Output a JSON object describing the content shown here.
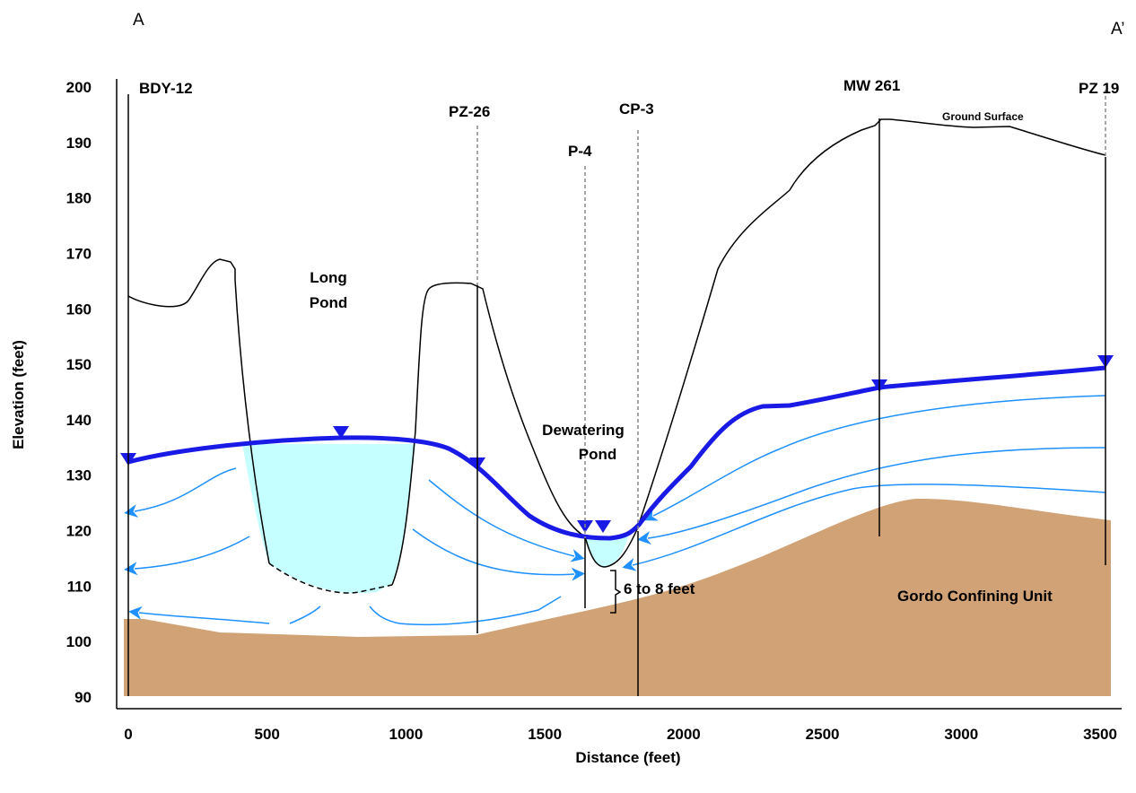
{
  "section": {
    "start": "A",
    "end": "A’"
  },
  "axes": {
    "x_label": "Distance (feet)",
    "y_label": "Elevation (feet)",
    "xlim": [
      0,
      3500
    ],
    "ylim": [
      90,
      200
    ],
    "xticks": [
      0,
      500,
      1000,
      1500,
      2000,
      2500,
      3000,
      3500
    ],
    "yticks": [
      90,
      100,
      110,
      120,
      130,
      140,
      150,
      160,
      170,
      180,
      190,
      200
    ]
  },
  "wells": [
    "BDY-12",
    "PZ-26",
    "P-4",
    "CP-3",
    "MW 261",
    "PZ 19"
  ],
  "labels": {
    "ground": "Ground Surface",
    "long_pond": [
      "Long",
      "Pond"
    ],
    "dewatering_pond": [
      "Dewatering",
      "Pond"
    ],
    "gap": "6 to 8 feet",
    "confining": "Gordo Confining Unit"
  }
}
